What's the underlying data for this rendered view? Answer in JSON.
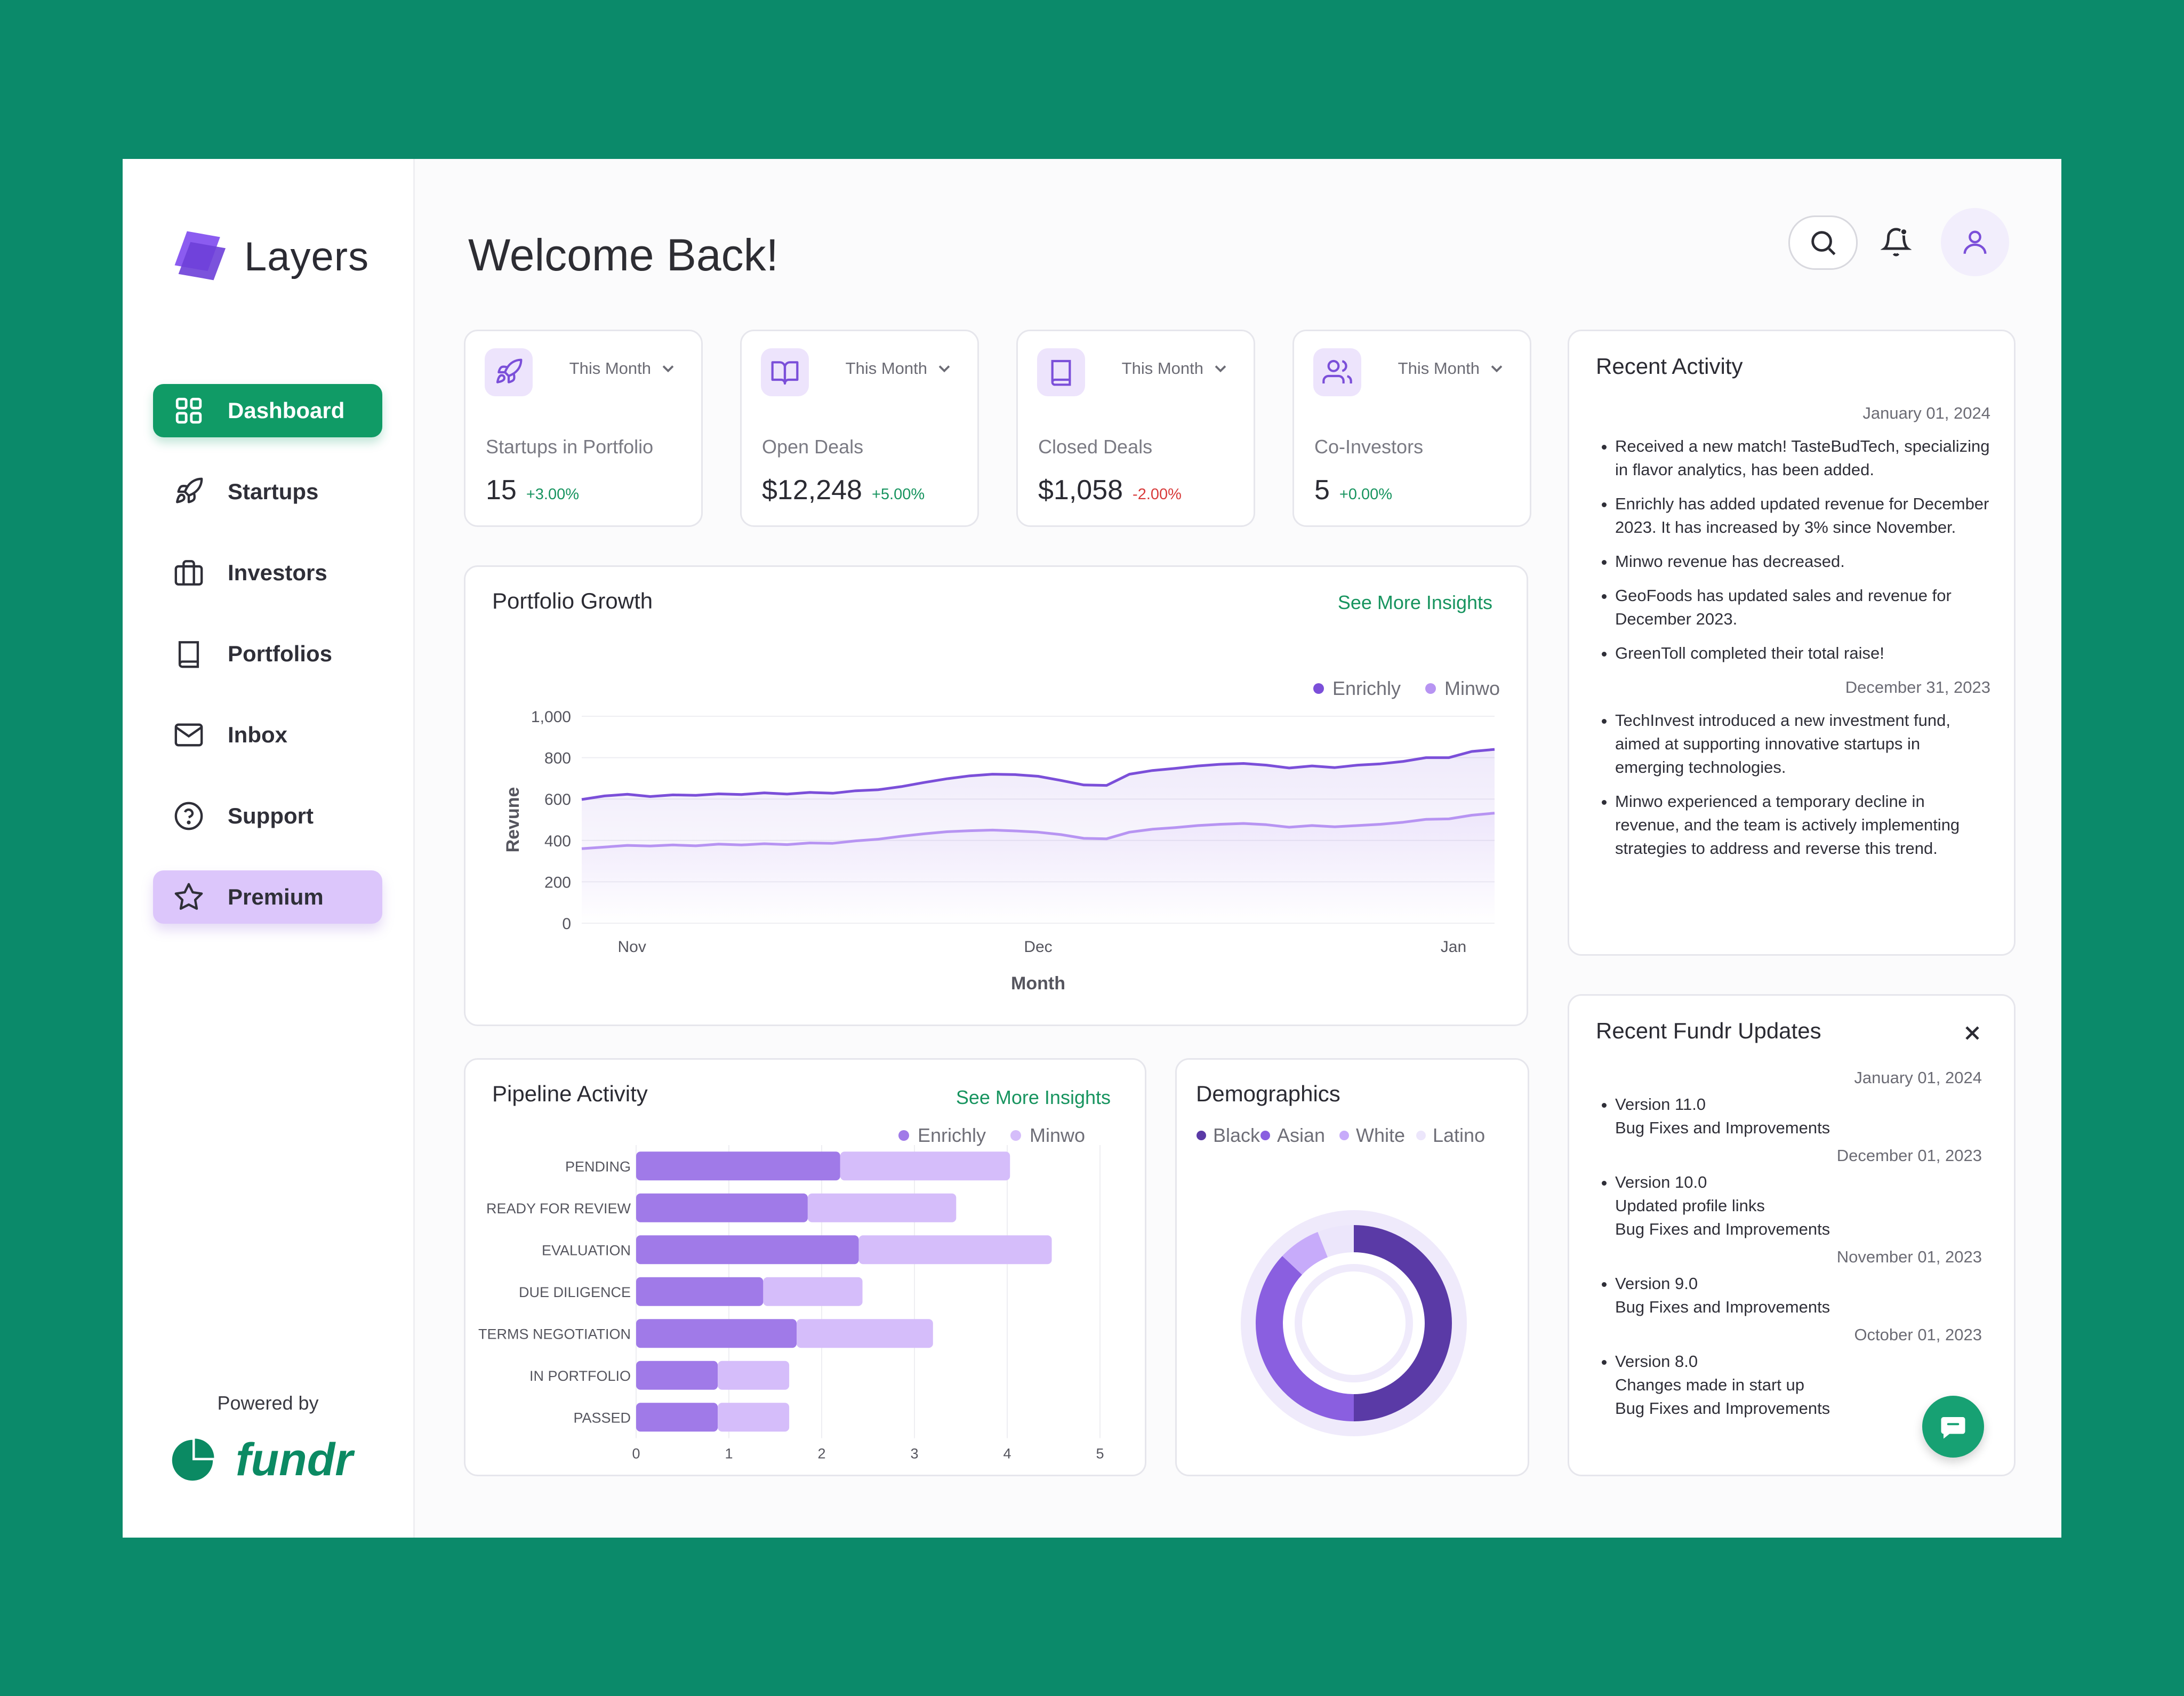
{
  "app": {
    "name": "Layers",
    "welcome": "Welcome Back!",
    "powered_by": "Powered by",
    "powered_brand": "fundr"
  },
  "nav": [
    {
      "label": "Dashboard",
      "icon": "grid-icon"
    },
    {
      "label": "Startups",
      "icon": "rocket-icon"
    },
    {
      "label": "Investors",
      "icon": "briefcase-icon"
    },
    {
      "label": "Portfolios",
      "icon": "book-icon"
    },
    {
      "label": "Inbox",
      "icon": "mail-icon"
    },
    {
      "label": "Support",
      "icon": "help-icon"
    },
    {
      "label": "Premium",
      "icon": "star-icon"
    }
  ],
  "stats": [
    {
      "period": "This Month",
      "label": "Startups in Portfolio",
      "value": "15",
      "change": "+3.00%",
      "trend": "up",
      "icon": "rocket-icon"
    },
    {
      "period": "This Month",
      "label": "Open Deals",
      "value": "$12,248",
      "change": "+5.00%",
      "trend": "up",
      "icon": "open-book-icon"
    },
    {
      "period": "This Month",
      "label": "Closed Deals",
      "value": "$1,058",
      "change": "-2.00%",
      "trend": "down",
      "icon": "book-icon"
    },
    {
      "period": "This Month",
      "label": "Co-Investors",
      "value": "5",
      "change": "+0.00%",
      "trend": "up",
      "icon": "users-icon"
    }
  ],
  "portfolio": {
    "title": "Portfolio Growth",
    "see_more": "See More Insights"
  },
  "pipeline": {
    "title": "Pipeline Activity",
    "see_more": "See More Insights"
  },
  "demographics": {
    "title": "Demographics"
  },
  "recent_activity": {
    "title": "Recent Activity",
    "groups": [
      {
        "date": "January 01, 2024",
        "items": [
          "Received a new match! TasteBudTech, specializing in flavor analytics, has been added.",
          "Enrichly has added updated revenue for December 2023. It has increased by 3% since November.",
          "Minwo revenue has decreased.",
          "GeoFoods has updated sales and revenue for December 2023.",
          "GreenToll completed their total raise!"
        ]
      },
      {
        "date": "December 31, 2023",
        "items": [
          "TechInvest introduced a new investment fund, aimed at supporting innovative startups in emerging technologies.",
          "Minwo experienced a temporary decline in revenue, and the team is actively implementing strategies to address and reverse this trend."
        ]
      }
    ]
  },
  "fundr_updates": {
    "title": "Recent Fundr Updates",
    "groups": [
      {
        "date": "January 01, 2024",
        "items": [
          [
            "Version 11.0",
            "Bug Fixes and Improvements"
          ]
        ]
      },
      {
        "date": "December 01, 2023",
        "items": [
          [
            "Version 10.0",
            "Updated profile links",
            "Bug Fixes and Improvements"
          ]
        ]
      },
      {
        "date": "November 01, 2023",
        "items": [
          [
            "Version 9.0",
            "Bug Fixes and Improvements"
          ]
        ]
      },
      {
        "date": "October 01, 2023",
        "items": [
          [
            "Version 8.0",
            "Changes made in start up",
            "Bug Fixes and Improvements"
          ]
        ]
      }
    ]
  },
  "colors": {
    "brand_green": "#109b66",
    "enrichly": "#7b4fd9",
    "minwo": "#b794f2",
    "positive": "#17945f",
    "negative": "#d83b3b"
  },
  "chart_data": [
    {
      "type": "area",
      "title": "Portfolio Growth",
      "xlabel": "Month",
      "ylabel": "Revune",
      "x_ticks": [
        "Nov",
        "Dec",
        "Jan"
      ],
      "y_ticks": [
        "0",
        "200",
        "400",
        "600",
        "800",
        "1,000"
      ],
      "ylim": [
        0,
        1000
      ],
      "grid": true,
      "legend": "top-right",
      "series": [
        {
          "name": "Enrichly",
          "color": "#7b4fd9",
          "values": [
            598,
            615,
            623,
            612,
            620,
            618,
            625,
            622,
            630,
            624,
            632,
            628,
            640,
            645,
            660,
            680,
            698,
            712,
            720,
            718,
            710,
            690,
            668,
            666,
            720,
            738,
            748,
            760,
            768,
            772,
            764,
            750,
            760,
            752,
            764,
            770,
            782,
            800,
            800,
            830,
            840
          ]
        },
        {
          "name": "Minwo",
          "color": "#b794f2",
          "values": [
            360,
            368,
            376,
            373,
            378,
            374,
            382,
            378,
            384,
            380,
            388,
            386,
            398,
            406,
            420,
            432,
            442,
            447,
            450,
            446,
            440,
            428,
            410,
            408,
            440,
            454,
            462,
            472,
            478,
            482,
            476,
            464,
            472,
            466,
            472,
            478,
            488,
            502,
            504,
            522,
            532
          ]
        }
      ]
    },
    {
      "type": "bar",
      "title": "Pipeline Activity",
      "orientation": "horizontal",
      "stacked": true,
      "categories": [
        "PENDING",
        "READY FOR REVIEW",
        "EVALUATION",
        "DUE DILIGENCE",
        "TERMS NEGOTIATION",
        "IN PORTFOLIO",
        "PASSED"
      ],
      "x_ticks": [
        "0",
        "1",
        "2",
        "3",
        "4",
        "5"
      ],
      "xlim": [
        0,
        5
      ],
      "legend": "top-right",
      "series": [
        {
          "name": "Enrichly",
          "color": "#a07ae8",
          "values": [
            2.2,
            1.85,
            2.4,
            1.37,
            1.73,
            0.88,
            0.88
          ]
        },
        {
          "name": "Minwo",
          "color": "#d5bdfa",
          "values": [
            1.83,
            1.6,
            2.08,
            1.07,
            1.47,
            0.77,
            0.77
          ]
        }
      ]
    },
    {
      "type": "pie",
      "title": "Demographics",
      "categories": [
        "Black",
        "Asian",
        "White",
        "Latino"
      ],
      "values": [
        50,
        37,
        7,
        6
      ],
      "colors": [
        "#5a3aa6",
        "#8a5fe0",
        "#c7abfa",
        "#ece6fb"
      ],
      "legend": "top"
    }
  ]
}
